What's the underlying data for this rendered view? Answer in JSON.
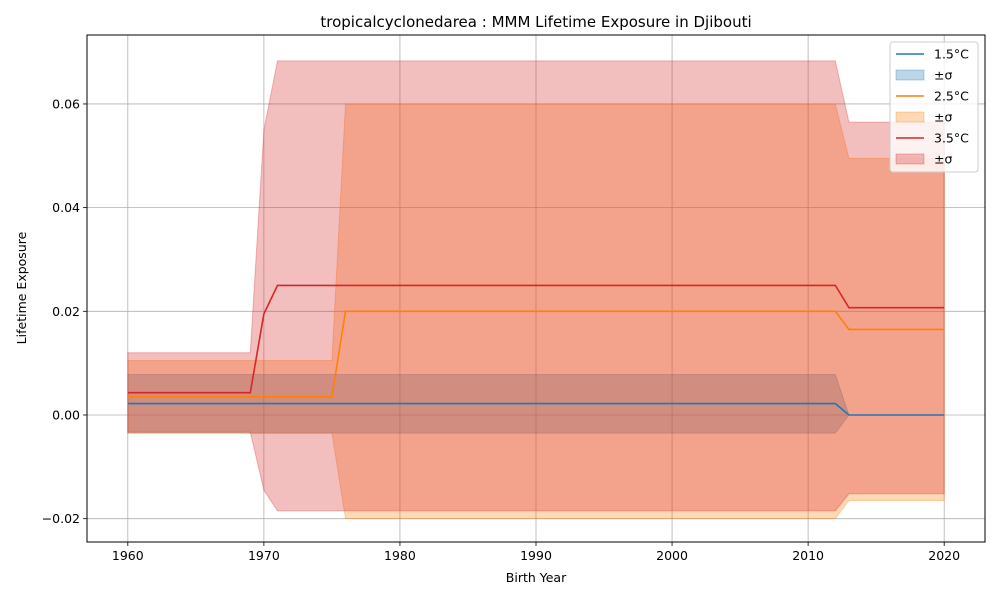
{
  "chart_data": {
    "type": "line",
    "title": "tropicalcyclonedarea : MMM Lifetime Exposure in Djibouti",
    "xlabel": "Birth Year",
    "ylabel": "Lifetime Exposure",
    "xlim": [
      1957,
      2023
    ],
    "ylim": [
      -0.0245,
      0.0733
    ],
    "xticks": [
      1960,
      1970,
      1980,
      1990,
      2000,
      2010,
      2020
    ],
    "xtick_labels": [
      "1960",
      "1970",
      "1980",
      "1990",
      "2000",
      "2010",
      "2020"
    ],
    "yticks": [
      -0.02,
      0.0,
      0.02,
      0.04,
      0.06
    ],
    "ytick_labels": [
      "−0.02",
      "0.00",
      "0.02",
      "0.04",
      "0.06"
    ],
    "grid": true,
    "legend_position": "top-right",
    "series": [
      {
        "name": "1.5°C",
        "band_label": "±σ",
        "color": "#1f77b4",
        "points": [
          [
            1960,
            0.0022
          ],
          [
            2012,
            0.0022
          ],
          [
            2013,
            0.0
          ],
          [
            2020,
            0.0
          ]
        ],
        "band": [
          [
            1960,
            -0.0035,
            0.0078
          ],
          [
            2012,
            -0.0035,
            0.0078
          ],
          [
            2013,
            0.0,
            0.0
          ],
          [
            2020,
            0.0,
            0.0
          ]
        ]
      },
      {
        "name": "2.5°C",
        "band_label": "±σ",
        "color": "#ff7f0e",
        "points": [
          [
            1960,
            0.0035
          ],
          [
            1975,
            0.0035
          ],
          [
            1976,
            0.02
          ],
          [
            2012,
            0.02
          ],
          [
            2013,
            0.0165
          ],
          [
            2020,
            0.0165
          ]
        ],
        "band": [
          [
            1960,
            -0.0035,
            0.0105
          ],
          [
            1975,
            -0.0035,
            0.0105
          ],
          [
            1976,
            -0.02,
            0.06
          ],
          [
            2012,
            -0.02,
            0.06
          ],
          [
            2013,
            -0.0165,
            0.0495
          ],
          [
            2020,
            -0.0165,
            0.0495
          ]
        ]
      },
      {
        "name": "3.5°C",
        "band_label": "±σ",
        "color": "#d62728",
        "points": [
          [
            1960,
            0.0043
          ],
          [
            1969,
            0.0043
          ],
          [
            1970,
            0.0195
          ],
          [
            1971,
            0.025
          ],
          [
            2012,
            0.025
          ],
          [
            2013,
            0.0207
          ],
          [
            2020,
            0.0207
          ]
        ],
        "band": [
          [
            1960,
            -0.0033,
            0.012
          ],
          [
            1969,
            -0.0033,
            0.012
          ],
          [
            1970,
            -0.0145,
            0.055
          ],
          [
            1971,
            -0.0185,
            0.0683
          ],
          [
            2012,
            -0.0185,
            0.0683
          ],
          [
            2013,
            -0.0152,
            0.0565
          ],
          [
            2020,
            -0.0152,
            0.0565
          ]
        ]
      }
    ]
  }
}
